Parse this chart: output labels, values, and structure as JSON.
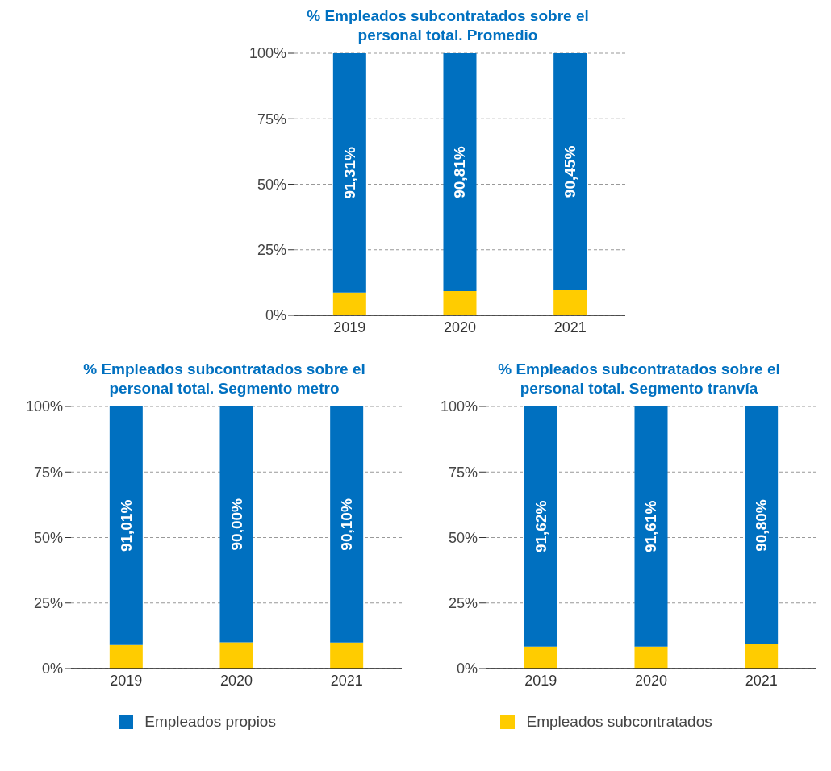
{
  "chart_data": [
    {
      "type": "bar",
      "title": "% Empleados subcontratados sobre el personal total. Promedio",
      "categories": [
        "2019",
        "2020",
        "2021"
      ],
      "stacked": true,
      "ylim": [
        0,
        100
      ],
      "yticks": [
        {
          "value": 0,
          "label": "0%"
        },
        {
          "value": 25,
          "label": "25%"
        },
        {
          "value": 50,
          "label": "50%"
        },
        {
          "value": 75,
          "label": "75%"
        },
        {
          "value": 100,
          "label": "100%"
        }
      ],
      "grid": "y",
      "legend": "bottom",
      "series": [
        {
          "name": "Empleados subcontratados",
          "color": "#ffcc00",
          "values": [
            8.7,
            9.2,
            9.6
          ]
        },
        {
          "name": "Empleados propios",
          "color": "#0070c0",
          "values": [
            91.31,
            90.81,
            90.45
          ],
          "value_labels": [
            "91,31%",
            "90,81%",
            "90,45%"
          ]
        }
      ]
    },
    {
      "type": "bar",
      "title": "% Empleados subcontratados sobre el personal total. Segmento metro",
      "categories": [
        "2019",
        "2020",
        "2021"
      ],
      "stacked": true,
      "ylim": [
        0,
        100
      ],
      "yticks": [
        {
          "value": 0,
          "label": "0%"
        },
        {
          "value": 25,
          "label": "25%"
        },
        {
          "value": 50,
          "label": "50%"
        },
        {
          "value": 75,
          "label": "75%"
        },
        {
          "value": 100,
          "label": "100%"
        }
      ],
      "grid": "y",
      "series": [
        {
          "color": "#ffcc00",
          "values": [
            9.0,
            10.0,
            9.9
          ]
        },
        {
          "color": "#0070c0",
          "values": [
            91.01,
            90.0,
            90.1
          ],
          "value_labels": [
            "91,01%",
            "90,00%",
            "90,10%"
          ]
        }
      ]
    },
    {
      "type": "bar",
      "title": "% Empleados subcontratados sobre el personal total. Segmento tranvía",
      "categories": [
        "2019",
        "2020",
        "2021"
      ],
      "stacked": true,
      "ylim": [
        0,
        100
      ],
      "yticks": [
        {
          "value": 0,
          "label": "0%"
        },
        {
          "value": 25,
          "label": "25%"
        },
        {
          "value": 50,
          "label": "50%"
        },
        {
          "value": 75,
          "label": "75%"
        },
        {
          "value": 100,
          "label": "100%"
        }
      ],
      "grid": "y",
      "series": [
        {
          "color": "#ffcc00",
          "values": [
            8.4,
            8.4,
            9.2
          ]
        },
        {
          "color": "#0070c0",
          "values": [
            91.62,
            91.61,
            90.8
          ],
          "value_labels": [
            "91,62%",
            "91,61%",
            "90,80%"
          ]
        }
      ]
    }
  ]
}
